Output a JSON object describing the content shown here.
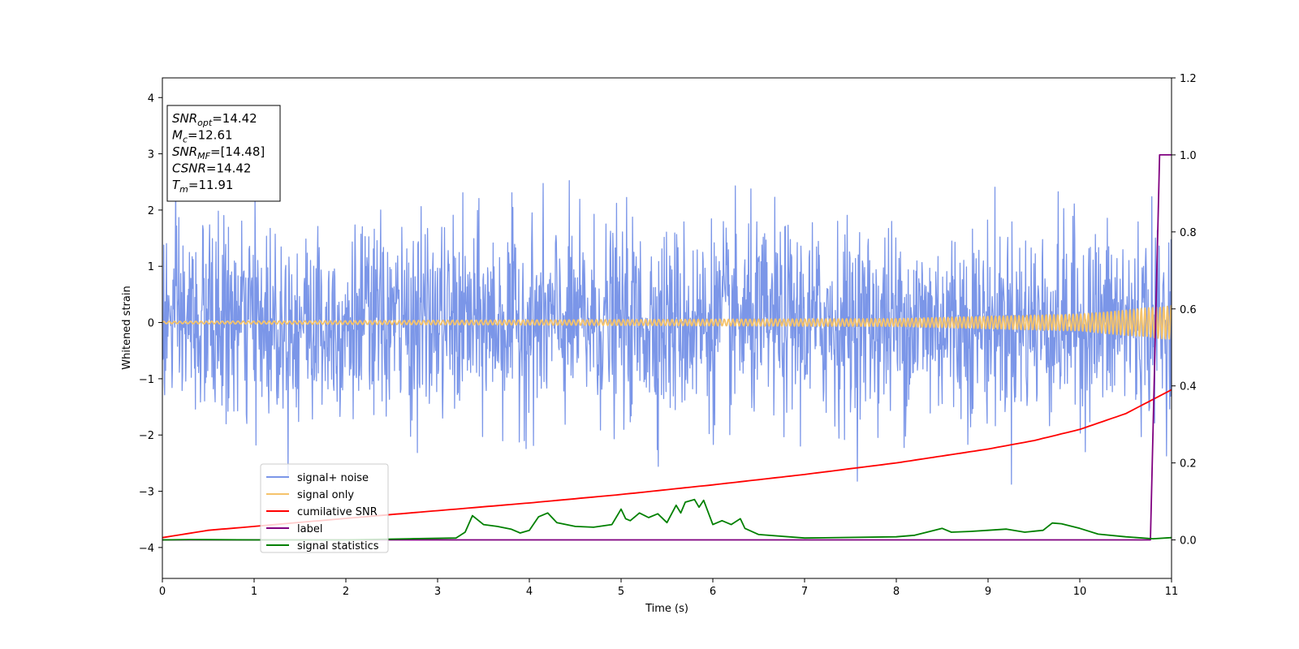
{
  "chart_data": {
    "type": "line",
    "xlabel": "Time (s)",
    "ylabel": "Whitened strain",
    "xlim": [
      0,
      11
    ],
    "ylim": [
      -4.55,
      4.35
    ],
    "y2lim": [
      -0.1,
      1.2
    ],
    "x_ticks": [
      "0",
      "1",
      "2",
      "3",
      "4",
      "5",
      "6",
      "7",
      "8",
      "9",
      "10",
      "11"
    ],
    "y_ticks": [
      "−4",
      "−3",
      "−2",
      "−1",
      "0",
      "1",
      "2",
      "3",
      "4"
    ],
    "y2_ticks": [
      "0.0",
      "0.2",
      "0.4",
      "0.6",
      "0.8",
      "1.0",
      "1.2"
    ],
    "grid": false,
    "legend_position": "lower-left",
    "annotation": {
      "lines": [
        {
          "sym": "SNR",
          "sub": "opt",
          "value": "=14.42"
        },
        {
          "sym": "M",
          "sub": "c",
          "value": "=12.61"
        },
        {
          "sym": "SNR",
          "sub": "MF",
          "value": "=[14.48]"
        },
        {
          "sym": "CSNR",
          "sub": "",
          "value": "=14.42"
        },
        {
          "sym": "T",
          "sub": "m",
          "value": "=11.91"
        }
      ]
    },
    "series": [
      {
        "name": "signal+ noise",
        "color": "#7b96e8",
        "axis": "left",
        "kind": "noise",
        "sigma": 0.85,
        "x_range": [
          0,
          11
        ]
      },
      {
        "name": "signal only",
        "color": "#f5c36b",
        "axis": "left",
        "kind": "chirp",
        "x_range": [
          0,
          11
        ],
        "amplitude_envelope": {
          "x": [
            0,
            8,
            10,
            11
          ],
          "y": [
            0.02,
            0.07,
            0.15,
            0.3
          ]
        }
      },
      {
        "name": "cumilative SNR",
        "color": "#ff0000",
        "axis": "right",
        "x": [
          0,
          0.5,
          1,
          2,
          3,
          4,
          5,
          6,
          7,
          8,
          9,
          9.5,
          10,
          10.5,
          11
        ],
        "y": [
          0.006,
          0.025,
          0.035,
          0.056,
          0.076,
          0.096,
          0.118,
          0.143,
          0.17,
          0.2,
          0.236,
          0.258,
          0.287,
          0.328,
          0.39
        ]
      },
      {
        "name": "label",
        "color": "#800080",
        "axis": "right",
        "x": [
          0,
          10.77,
          10.87,
          11
        ],
        "y": [
          0,
          0,
          1,
          1
        ]
      },
      {
        "name": "signal statistics",
        "color": "#008000",
        "axis": "right",
        "x": [
          0,
          0.3,
          1,
          2,
          2.7,
          3.2,
          3.3,
          3.38,
          3.5,
          3.65,
          3.8,
          3.9,
          4.0,
          4.1,
          4.2,
          4.3,
          4.5,
          4.7,
          4.9,
          5.0,
          5.05,
          5.1,
          5.15,
          5.2,
          5.3,
          5.4,
          5.5,
          5.6,
          5.65,
          5.7,
          5.8,
          5.85,
          5.9,
          6.0,
          6.1,
          6.2,
          6.3,
          6.35,
          6.5,
          7,
          8,
          8.2,
          8.4,
          8.5,
          8.6,
          8.8,
          9.0,
          9.2,
          9.4,
          9.6,
          9.7,
          9.8,
          10.0,
          10.2,
          10.5,
          10.8,
          11
        ],
        "y": [
          0,
          0.001,
          0,
          0,
          0.003,
          0.005,
          0.02,
          0.063,
          0.04,
          0.035,
          0.028,
          0.018,
          0.025,
          0.06,
          0.07,
          0.045,
          0.035,
          0.033,
          0.04,
          0.08,
          0.055,
          0.05,
          0.06,
          0.07,
          0.058,
          0.068,
          0.045,
          0.09,
          0.07,
          0.098,
          0.105,
          0.085,
          0.103,
          0.04,
          0.05,
          0.04,
          0.055,
          0.03,
          0.014,
          0.005,
          0.008,
          0.012,
          0.024,
          0.03,
          0.02,
          0.022,
          0.025,
          0.028,
          0.02,
          0.025,
          0.044,
          0.042,
          0.03,
          0.015,
          0.008,
          0.003,
          0.006
        ]
      }
    ]
  }
}
